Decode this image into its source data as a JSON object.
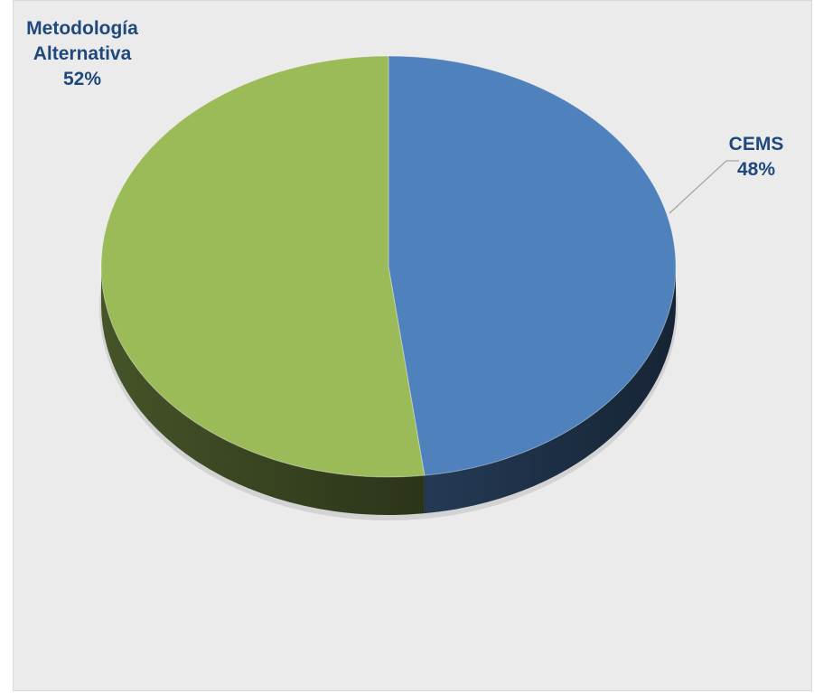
{
  "chart_data": {
    "type": "pie",
    "style": "3d",
    "title": "",
    "slices": [
      {
        "label": "CEMS",
        "percent_label": "48%",
        "value": 48,
        "color": "#4f81bd"
      },
      {
        "label": "Metodología Alternativa",
        "percent_label": "52%",
        "value": 52,
        "color": "#9bbb59"
      }
    ],
    "colors": {
      "background": "#ebebeb",
      "label_text": "#1f497d",
      "leader_line": "#a6a6a6"
    }
  }
}
